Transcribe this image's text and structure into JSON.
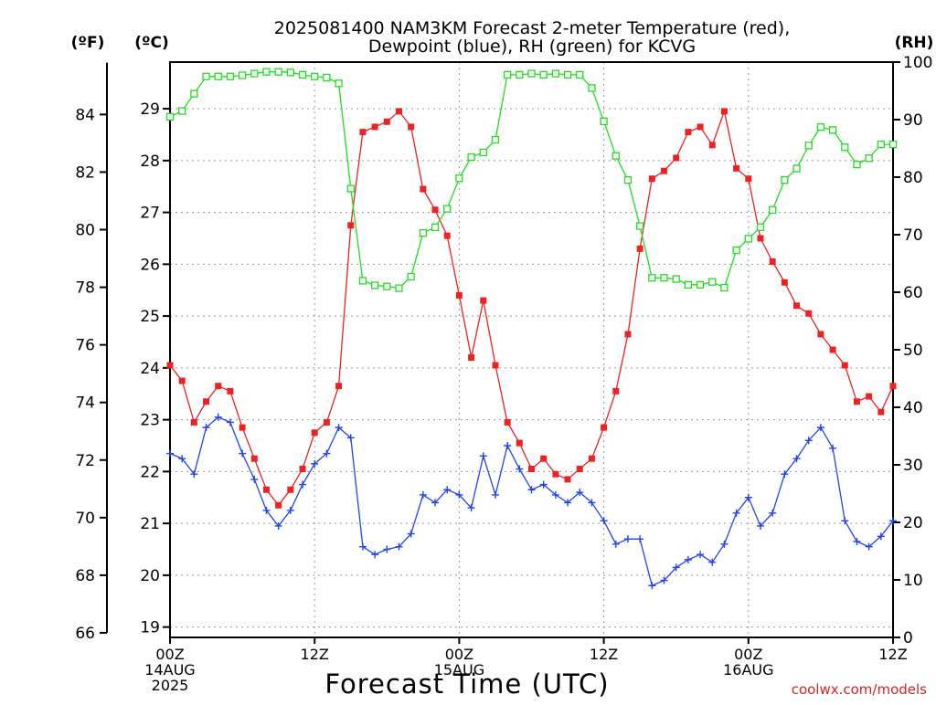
{
  "chart_data": {
    "type": "line",
    "title_line1": "2025081400 NAM3KM Forecast 2-meter Temperature (red),",
    "title_line2": "Dewpoint (blue), RH (green) for KCVG",
    "xlabel": "Forecast Time (UTC)",
    "left_unit_f": "(ºF)",
    "left_unit_c": "(ºC)",
    "right_unit": "(RH)",
    "credit": "coolwx.com/models",
    "x_range_hours": [
      0,
      60
    ],
    "x_ticks": [
      {
        "hour": 0,
        "lines": [
          "00Z",
          "14AUG",
          "2025"
        ]
      },
      {
        "hour": 12,
        "lines": [
          "12Z"
        ]
      },
      {
        "hour": 24,
        "lines": [
          "00Z",
          "15AUG"
        ]
      },
      {
        "hour": 36,
        "lines": [
          "12Z"
        ]
      },
      {
        "hour": 48,
        "lines": [
          "00Z",
          "16AUG"
        ]
      },
      {
        "hour": 60,
        "lines": [
          "12Z"
        ]
      }
    ],
    "y_celsius": {
      "range": [
        18.8,
        29.9
      ],
      "ticks": [
        19,
        20,
        21,
        22,
        23,
        24,
        25,
        26,
        27,
        28,
        29
      ]
    },
    "y_fahrenheit_ticks": [
      66,
      68,
      70,
      72,
      74,
      76,
      78,
      80,
      82,
      84
    ],
    "y_rh": {
      "range": [
        0,
        100
      ],
      "ticks": [
        0,
        10,
        20,
        30,
        40,
        50,
        60,
        70,
        80,
        90,
        100
      ]
    },
    "x_hours": [
      0,
      1,
      2,
      3,
      4,
      5,
      6,
      7,
      8,
      9,
      10,
      11,
      12,
      13,
      14,
      15,
      16,
      17,
      18,
      19,
      20,
      21,
      22,
      23,
      24,
      25,
      26,
      27,
      28,
      29,
      30,
      31,
      32,
      33,
      34,
      35,
      36,
      37,
      38,
      39,
      40,
      41,
      42,
      43,
      44,
      45,
      46,
      47,
      48,
      49,
      50,
      51,
      52,
      53,
      54,
      55,
      56,
      57,
      58,
      59,
      60
    ],
    "series": [
      {
        "name": "Temperature",
        "color": "#ee2222",
        "axis": "celsius",
        "marker": "filled-square",
        "values": [
          24.05,
          23.75,
          22.95,
          23.35,
          23.65,
          23.55,
          22.85,
          22.25,
          21.65,
          21.35,
          21.65,
          22.05,
          22.75,
          22.95,
          23.65,
          26.75,
          28.55,
          28.65,
          28.75,
          28.95,
          28.65,
          27.45,
          27.05,
          26.55,
          25.4,
          24.2,
          25.3,
          24.05,
          22.95,
          22.55,
          22.05,
          22.25,
          21.95,
          21.85,
          22.05,
          22.25,
          22.85,
          23.55,
          24.65,
          26.3,
          27.65,
          27.8,
          28.05,
          28.55,
          28.65,
          28.3,
          28.95,
          27.85,
          27.65,
          26.5,
          26.05,
          25.65,
          25.2,
          25.05,
          24.65,
          24.35,
          24.05,
          23.35,
          23.45,
          23.15,
          23.65
        ]
      },
      {
        "name": "Dewpoint",
        "color": "#2244ee",
        "axis": "celsius",
        "marker": "plus",
        "values": [
          22.35,
          22.25,
          21.95,
          22.85,
          23.05,
          22.95,
          22.35,
          21.85,
          21.25,
          20.95,
          21.25,
          21.75,
          22.15,
          22.35,
          22.85,
          22.65,
          20.55,
          20.4,
          20.5,
          20.55,
          20.8,
          21.55,
          21.4,
          21.65,
          21.55,
          21.3,
          22.3,
          21.55,
          22.5,
          22.05,
          21.65,
          21.75,
          21.55,
          21.4,
          21.6,
          21.4,
          21.05,
          20.6,
          20.7,
          20.7,
          19.8,
          19.9,
          20.15,
          20.3,
          20.4,
          20.25,
          20.6,
          21.2,
          21.5,
          20.95,
          21.2,
          21.95,
          22.25,
          22.6,
          22.85,
          22.45,
          21.05,
          20.65,
          20.55,
          20.75,
          21.05
        ]
      },
      {
        "name": "RH",
        "color": "#22dd22",
        "axis": "rh",
        "marker": "open-square",
        "values": [
          90.5,
          91.5,
          94.5,
          97.5,
          97.5,
          97.5,
          97.7,
          98,
          98.3,
          98.3,
          98.2,
          97.8,
          97.5,
          97.3,
          96.3,
          78,
          62,
          61.2,
          61,
          60.7,
          62.7,
          70.3,
          71.3,
          74.5,
          79.8,
          83.5,
          84.3,
          86.5,
          97.8,
          97.8,
          98,
          97.8,
          98,
          97.8,
          97.8,
          95.5,
          89.7,
          83.7,
          79.5,
          71.5,
          62.5,
          62.5,
          62.3,
          61.3,
          61.3,
          61.8,
          60.8,
          67.3,
          69.3,
          71.3,
          74.3,
          79.5,
          81.5,
          85.5,
          88.7,
          88.2,
          85.2,
          82.2,
          83.3,
          85.7,
          85.7
        ]
      }
    ]
  }
}
